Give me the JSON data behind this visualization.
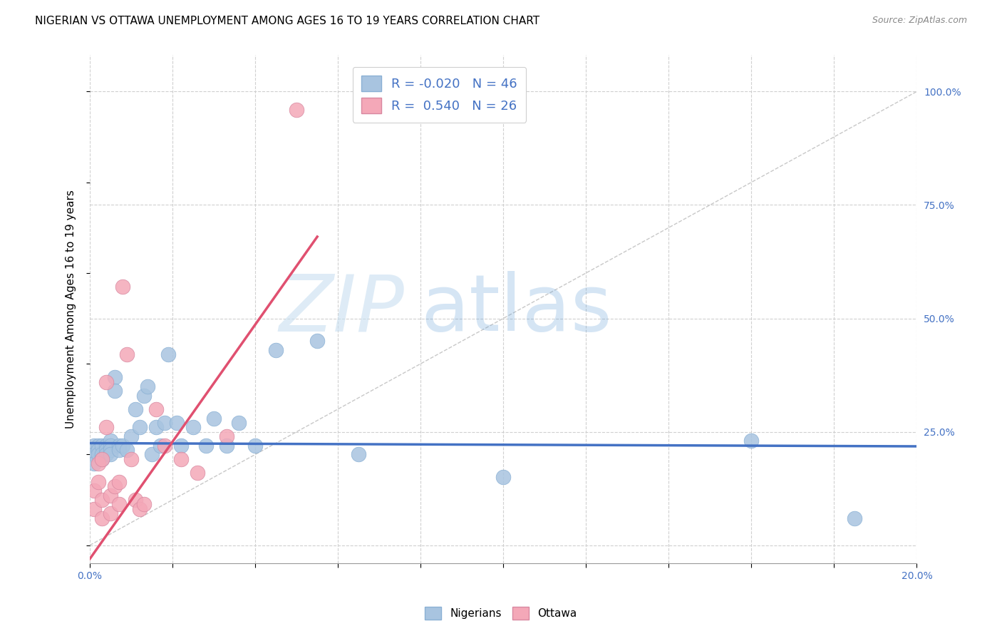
{
  "title": "NIGERIAN VS OTTAWA UNEMPLOYMENT AMONG AGES 16 TO 19 YEARS CORRELATION CHART",
  "source": "Source: ZipAtlas.com",
  "xlabel": "",
  "ylabel": "Unemployment Among Ages 16 to 19 years",
  "xlim": [
    0.0,
    0.2
  ],
  "ylim": [
    -0.04,
    1.08
  ],
  "xticks": [
    0.0,
    0.02,
    0.04,
    0.06,
    0.08,
    0.1,
    0.12,
    0.14,
    0.16,
    0.18,
    0.2
  ],
  "xticklabels": [
    "0.0%",
    "",
    "",
    "",
    "",
    "",
    "",
    "",
    "",
    "",
    "20.0%"
  ],
  "yticks_right": [
    0.0,
    0.25,
    0.5,
    0.75,
    1.0
  ],
  "yticklabels_right": [
    "",
    "25.0%",
    "50.0%",
    "75.0%",
    "100.0%"
  ],
  "legend_r_nigerian": "-0.020",
  "legend_n_nigerian": "46",
  "legend_r_ottawa": "0.540",
  "legend_n_ottawa": "26",
  "nigerian_color": "#a8c4e0",
  "ottawa_color": "#f4a8b8",
  "nigerian_line_color": "#4472c4",
  "ottawa_line_color": "#e05070",
  "background_color": "#ffffff",
  "gridline_color": "#d0d0d0",
  "nigerian_x": [
    0.001,
    0.001,
    0.001,
    0.002,
    0.002,
    0.002,
    0.003,
    0.003,
    0.003,
    0.004,
    0.004,
    0.004,
    0.005,
    0.005,
    0.005,
    0.005,
    0.006,
    0.006,
    0.007,
    0.007,
    0.008,
    0.009,
    0.01,
    0.011,
    0.012,
    0.013,
    0.014,
    0.015,
    0.016,
    0.017,
    0.018,
    0.019,
    0.021,
    0.022,
    0.025,
    0.028,
    0.03,
    0.033,
    0.036,
    0.04,
    0.045,
    0.055,
    0.065,
    0.1,
    0.16,
    0.185
  ],
  "nigerian_y": [
    0.22,
    0.2,
    0.18,
    0.22,
    0.21,
    0.2,
    0.22,
    0.2,
    0.19,
    0.22,
    0.21,
    0.2,
    0.23,
    0.22,
    0.21,
    0.2,
    0.37,
    0.34,
    0.22,
    0.21,
    0.22,
    0.21,
    0.24,
    0.3,
    0.26,
    0.33,
    0.35,
    0.2,
    0.26,
    0.22,
    0.27,
    0.42,
    0.27,
    0.22,
    0.26,
    0.22,
    0.28,
    0.22,
    0.27,
    0.22,
    0.43,
    0.45,
    0.2,
    0.15,
    0.23,
    0.06
  ],
  "ottawa_x": [
    0.001,
    0.001,
    0.002,
    0.002,
    0.003,
    0.003,
    0.003,
    0.004,
    0.004,
    0.005,
    0.005,
    0.006,
    0.007,
    0.007,
    0.008,
    0.009,
    0.01,
    0.011,
    0.012,
    0.013,
    0.016,
    0.018,
    0.022,
    0.026,
    0.033,
    0.05
  ],
  "ottawa_y": [
    0.08,
    0.12,
    0.14,
    0.18,
    0.06,
    0.1,
    0.19,
    0.26,
    0.36,
    0.07,
    0.11,
    0.13,
    0.09,
    0.14,
    0.57,
    0.42,
    0.19,
    0.1,
    0.08,
    0.09,
    0.3,
    0.22,
    0.19,
    0.16,
    0.24,
    0.96
  ],
  "nigerian_line_x": [
    0.0,
    0.2
  ],
  "nigerian_line_y": [
    0.225,
    0.218
  ],
  "ottawa_line_x": [
    0.0,
    0.055
  ],
  "ottawa_line_y": [
    -0.03,
    0.68
  ]
}
